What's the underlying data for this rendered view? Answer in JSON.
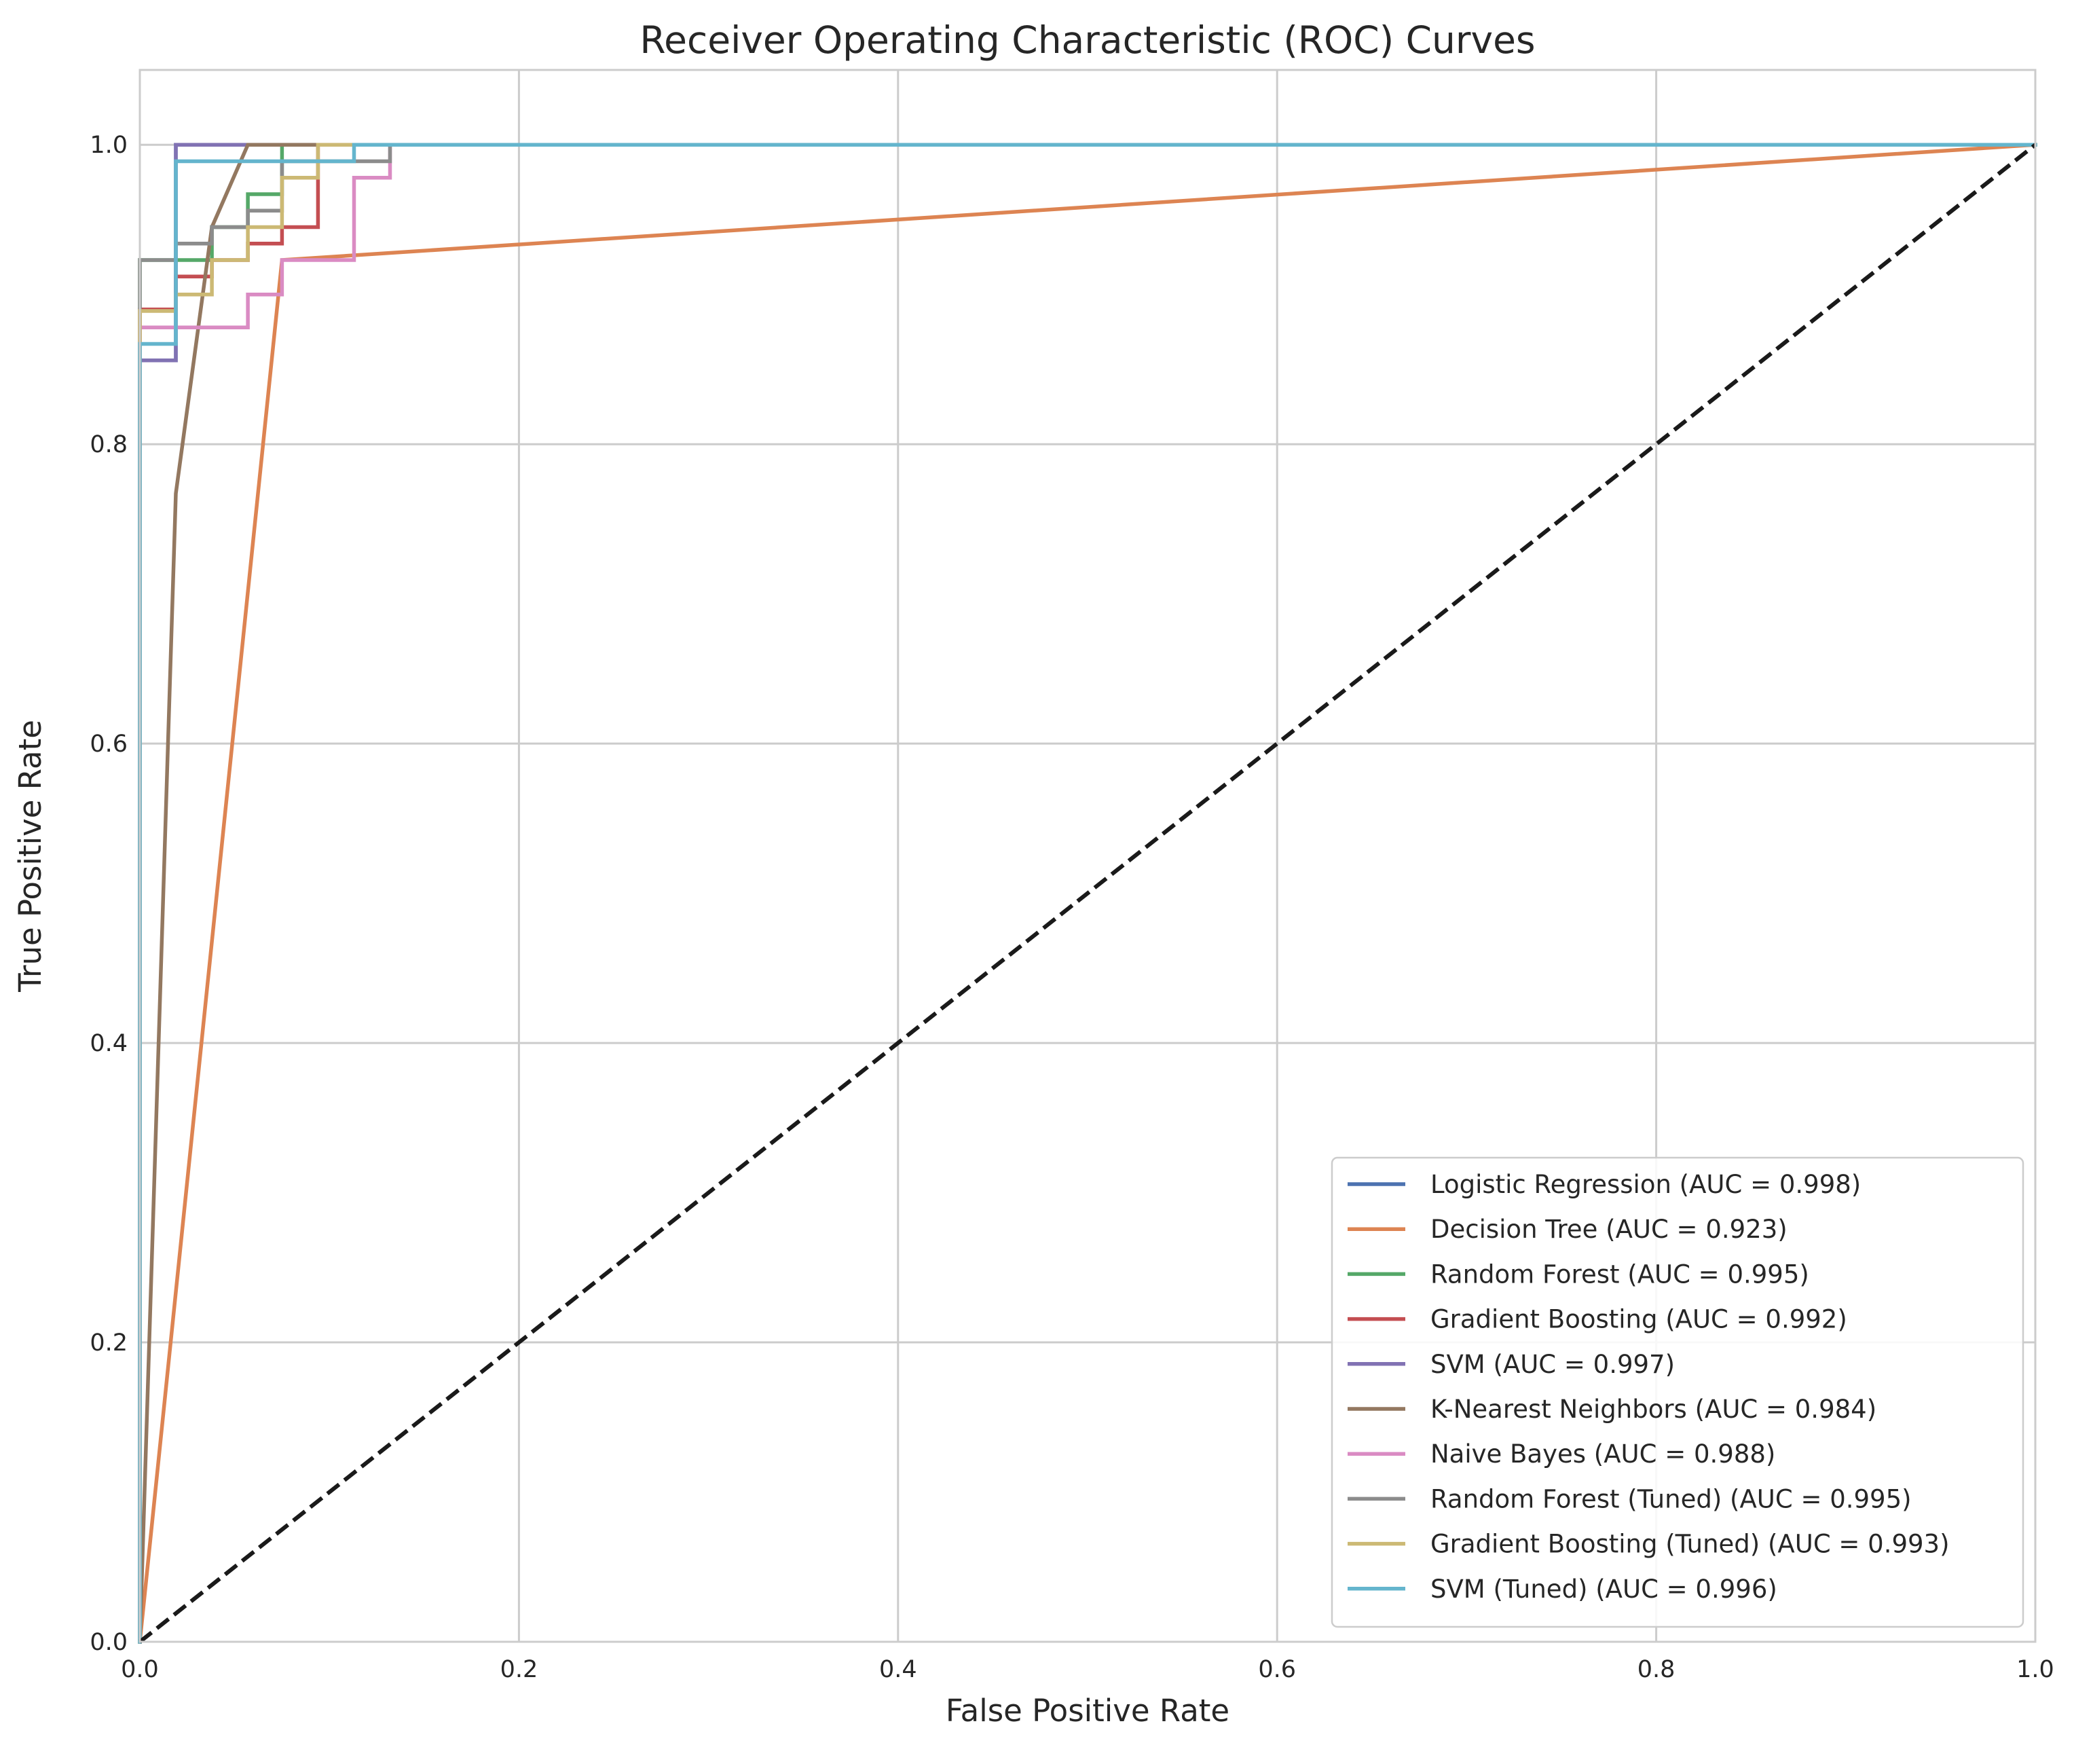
{
  "chart_data": {
    "type": "line",
    "title": "Receiver Operating Characteristic (ROC) Curves",
    "xlabel": "False Positive Rate",
    "ylabel": "True Positive Rate",
    "xlim": [
      0.0,
      1.0
    ],
    "ylim": [
      0.0,
      1.05
    ],
    "x_ticks": [
      "0.0",
      "0.2",
      "0.4",
      "0.6",
      "0.8",
      "1.0"
    ],
    "y_ticks": [
      "0.0",
      "0.2",
      "0.4",
      "0.6",
      "0.8",
      "1.0"
    ],
    "grid": true,
    "legend_position": "lower-right",
    "series": [
      {
        "name": "Logistic Regression (AUC = 0.998)",
        "color": "#4c72b0",
        "x": [
          0,
          0,
          0.019,
          0.019,
          1.0
        ],
        "y": [
          0,
          0.856,
          0.856,
          1.0,
          1.0
        ]
      },
      {
        "name": "Decision Tree (AUC = 0.923)",
        "color": "#dd8452",
        "x": [
          0,
          0.075,
          1.0
        ],
        "y": [
          0,
          0.923,
          1.0
        ]
      },
      {
        "name": "Random Forest (AUC = 0.995)",
        "color": "#55a868",
        "x": [
          0,
          0,
          0.038,
          0.038,
          0.057,
          0.057,
          0.075,
          0.075,
          1.0
        ],
        "y": [
          0,
          0.923,
          0.923,
          0.945,
          0.945,
          0.967,
          0.967,
          1.0,
          1.0
        ]
      },
      {
        "name": "Gradient Boosting (AUC = 0.992)",
        "color": "#c44e52",
        "x": [
          0,
          0,
          0.019,
          0.019,
          0.038,
          0.038,
          0.057,
          0.057,
          0.075,
          0.075,
          0.094,
          0.094,
          1.0
        ],
        "y": [
          0,
          0.89,
          0.89,
          0.912,
          0.912,
          0.923,
          0.923,
          0.934,
          0.934,
          0.945,
          0.945,
          1.0,
          1.0
        ]
      },
      {
        "name": "SVM (AUC = 0.997)",
        "color": "#8172b3",
        "x": [
          0,
          0,
          0.019,
          0.019,
          1.0
        ],
        "y": [
          0,
          0.856,
          0.856,
          1.0,
          1.0
        ]
      },
      {
        "name": "K-Nearest Neighbors (AUC = 0.984)",
        "color": "#937860",
        "x": [
          0,
          0.019,
          0.038,
          0.057,
          1.0
        ],
        "y": [
          0,
          0.767,
          0.945,
          1.0,
          1.0
        ]
      },
      {
        "name": "Naive Bayes (AUC = 0.988)",
        "color": "#da8bc3",
        "x": [
          0,
          0,
          0.057,
          0.057,
          0.075,
          0.075,
          0.113,
          0.113,
          0.132,
          0.132,
          1.0
        ],
        "y": [
          0,
          0.878,
          0.878,
          0.9,
          0.9,
          0.923,
          0.923,
          0.978,
          0.978,
          1.0,
          1.0
        ]
      },
      {
        "name": "Random Forest (Tuned) (AUC = 0.995)",
        "color": "#8c8c8c",
        "x": [
          0,
          0,
          0.019,
          0.019,
          0.038,
          0.038,
          0.057,
          0.057,
          0.075,
          0.075,
          0.132,
          0.132,
          1.0
        ],
        "y": [
          0,
          0.923,
          0.923,
          0.934,
          0.934,
          0.945,
          0.945,
          0.956,
          0.956,
          0.989,
          0.989,
          1.0,
          1.0
        ]
      },
      {
        "name": "Gradient Boosting (Tuned) (AUC = 0.993)",
        "color": "#ccb974",
        "x": [
          0,
          0,
          0.019,
          0.019,
          0.038,
          0.038,
          0.057,
          0.057,
          0.075,
          0.075,
          0.094,
          0.094,
          0.113,
          0.113,
          1.0
        ],
        "y": [
          0,
          0.889,
          0.889,
          0.9,
          0.9,
          0.923,
          0.923,
          0.945,
          0.945,
          0.978,
          0.978,
          1.0,
          1.0,
          1.0,
          1.0
        ]
      },
      {
        "name": "SVM (Tuned) (AUC = 0.996)",
        "color": "#64b5cd",
        "x": [
          0,
          0,
          0.019,
          0.019,
          0.113,
          0.113,
          1.0
        ],
        "y": [
          0,
          0.867,
          0.867,
          0.989,
          0.989,
          1.0,
          1.0
        ]
      }
    ],
    "reference_line": {
      "color": "#1a1a1a",
      "style": "dashed",
      "x": [
        0,
        1
      ],
      "y": [
        0,
        1
      ]
    }
  }
}
